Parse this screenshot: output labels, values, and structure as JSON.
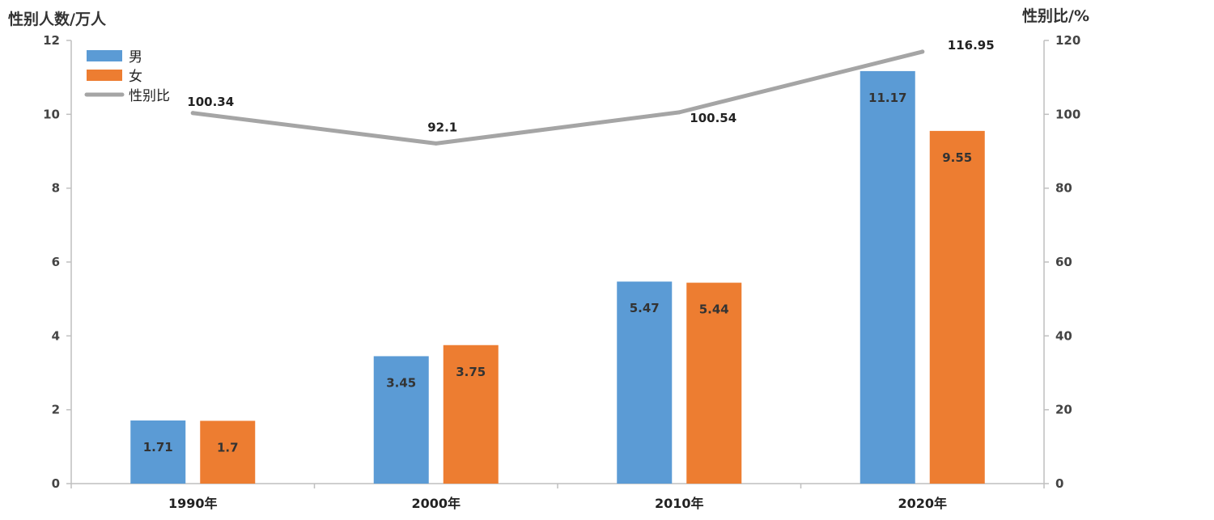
{
  "chart_data": {
    "type": "bar",
    "categories": [
      "1990年",
      "2000年",
      "2010年",
      "2020年"
    ],
    "series": [
      {
        "name": "男",
        "type": "bar",
        "axis": "left",
        "color": "#5b9bd5",
        "values": [
          1.71,
          3.45,
          5.47,
          11.17
        ],
        "labels": [
          "1.71",
          "3.45",
          "5.47",
          "11.17"
        ]
      },
      {
        "name": "女",
        "type": "bar",
        "axis": "left",
        "color": "#ed7d31",
        "values": [
          1.7,
          3.75,
          5.44,
          9.55
        ],
        "labels": [
          "1.7",
          "3.75",
          "5.44",
          "9.55"
        ]
      },
      {
        "name": "性别比",
        "type": "line",
        "axis": "right",
        "color": "#a5a5a5",
        "values": [
          100.34,
          92.1,
          100.54,
          116.95
        ],
        "labels": [
          "100.34",
          "92.1",
          "100.54",
          "116.95"
        ]
      }
    ],
    "ylabel_left": "性别人数/万人",
    "ylabel_right": "性别比/%",
    "ylim_left": [
      0,
      12
    ],
    "ylim_right": [
      0,
      120
    ],
    "yticks_left": [
      "0",
      "2",
      "4",
      "6",
      "8",
      "10",
      "12"
    ],
    "yticks_right": [
      "0",
      "20",
      "40",
      "60",
      "80",
      "100",
      "120"
    ],
    "grid": false,
    "legend_position": "top-left"
  }
}
